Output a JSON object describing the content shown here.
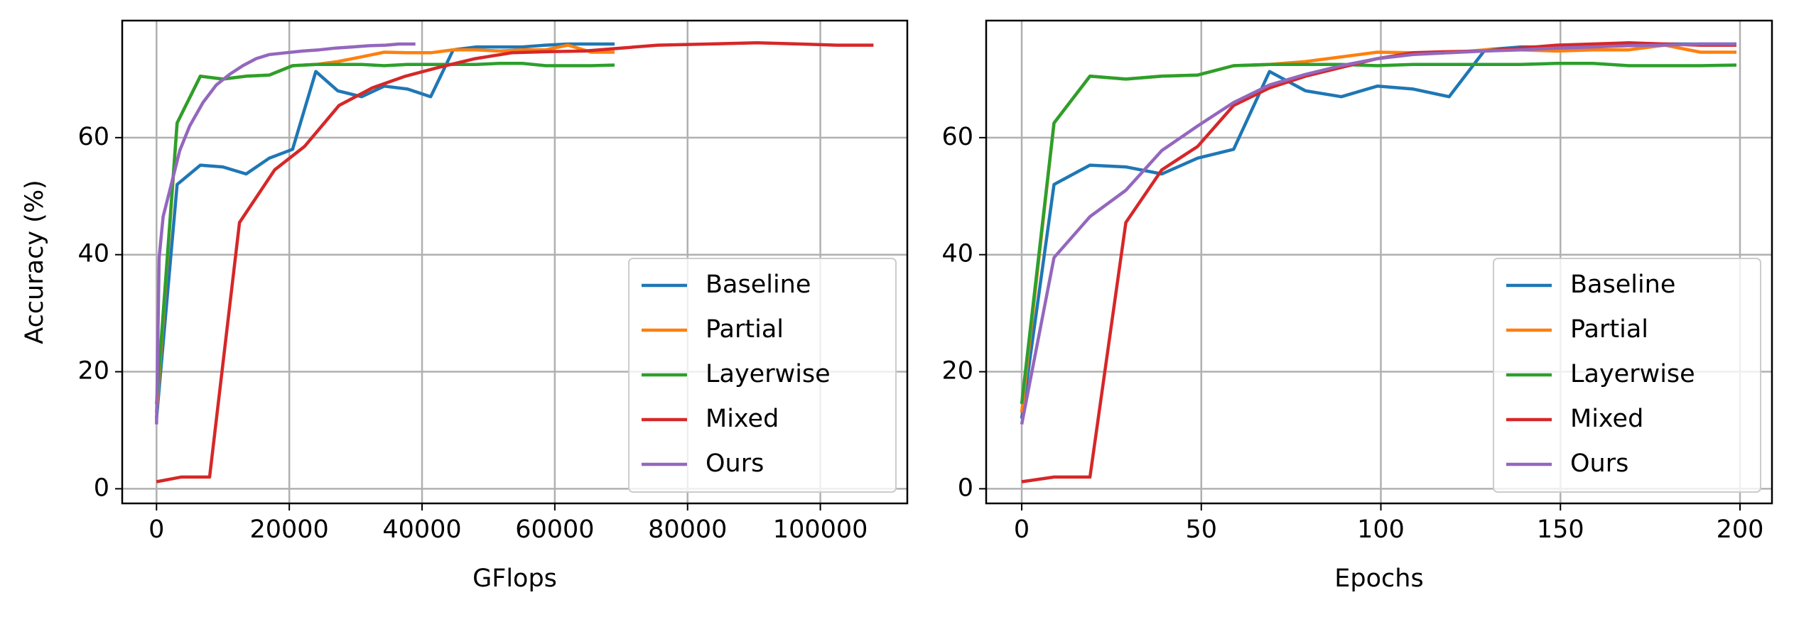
{
  "chart_data": [
    {
      "type": "line",
      "xlabel": "GFlops",
      "ylabel": "Accuracy (%)",
      "xlim": [
        -5170,
        113100
      ],
      "ylim": [
        -2.5,
        80
      ],
      "xticks": [
        0,
        20000,
        40000,
        60000,
        80000,
        100000
      ],
      "yticks": [
        0,
        20,
        40,
        60
      ],
      "grid": true,
      "legend": "lower right",
      "series": [
        {
          "name": "Baseline",
          "color": "#1f77b4",
          "x": [
            0,
            3100,
            6600,
            10000,
            13500,
            17000,
            20500,
            24000,
            27300,
            30900,
            34300,
            37800,
            41300,
            44700,
            48200,
            51700,
            55100,
            58600,
            62000,
            65500,
            69000
          ],
          "values": [
            12,
            52,
            55.3,
            55,
            53.8,
            56.5,
            58,
            71.3,
            68,
            67,
            68.8,
            68.3,
            67,
            75,
            75.5,
            75.5,
            75.5,
            75.8,
            76,
            76,
            76
          ]
        },
        {
          "name": "Partial",
          "color": "#ff7f0e",
          "x": [
            0,
            3100,
            6600,
            10000,
            13500,
            17000,
            20500,
            24000,
            27300,
            30900,
            34300,
            37800,
            41300,
            44700,
            48200,
            51700,
            55100,
            58600,
            62000,
            65500,
            69000
          ],
          "values": [
            13,
            62.5,
            70.5,
            70,
            70.5,
            70.7,
            72.3,
            72.5,
            73,
            73.8,
            74.6,
            74.5,
            74.5,
            75,
            75,
            74.8,
            75,
            75,
            75.8,
            74.6,
            74.6
          ]
        },
        {
          "name": "Layerwise",
          "color": "#2ca02c",
          "x": [
            0,
            3100,
            6600,
            10000,
            13500,
            17000,
            20500,
            24000,
            27300,
            30900,
            34300,
            37800,
            41300,
            44700,
            48200,
            51700,
            55100,
            58600,
            62000,
            65500,
            69000
          ],
          "values": [
            14.5,
            62.5,
            70.5,
            70,
            70.5,
            70.7,
            72.3,
            72.5,
            72.5,
            72.5,
            72.3,
            72.5,
            72.5,
            72.5,
            72.5,
            72.7,
            72.7,
            72.3,
            72.3,
            72.3,
            72.4
          ]
        },
        {
          "name": "Mixed",
          "color": "#d62728",
          "x": [
            0,
            3700,
            8000,
            12500,
            17800,
            22300,
            27500,
            32500,
            37500,
            42500,
            48000,
            53500,
            59000,
            64500,
            70000,
            75500,
            83000,
            90500,
            97000,
            102500,
            108000
          ],
          "values": [
            1.2,
            2,
            2,
            45.5,
            54.5,
            58.5,
            65.5,
            68.5,
            70.5,
            72,
            73.5,
            74.5,
            74.7,
            74.8,
            75.3,
            75.8,
            76,
            76.2,
            76,
            75.8,
            75.8
          ]
        },
        {
          "name": "Ours",
          "color": "#9467bd",
          "x": [
            0,
            400,
            1000,
            2000,
            3500,
            5000,
            7000,
            9000,
            11000,
            13000,
            15000,
            17000,
            19500,
            22000,
            24500,
            27000,
            29500,
            32000,
            34500,
            36500,
            39000
          ],
          "values": [
            11,
            39.5,
            46.5,
            51,
            57.8,
            62,
            66,
            69,
            70.8,
            72.3,
            73.5,
            74.2,
            74.5,
            74.8,
            75,
            75.3,
            75.5,
            75.7,
            75.8,
            76,
            76
          ]
        }
      ]
    },
    {
      "type": "line",
      "xlabel": "Epochs",
      "xlim": [
        -9.9,
        208.9
      ],
      "ylim": [
        -2.5,
        80
      ],
      "xticks": [
        0,
        50,
        100,
        150,
        200
      ],
      "yticks": [
        0,
        20,
        40,
        60
      ],
      "grid": true,
      "legend": "lower right",
      "x": [
        0,
        9,
        19,
        29,
        39,
        49,
        59,
        69,
        79,
        89,
        99,
        109,
        119,
        129,
        139,
        149,
        159,
        169,
        179,
        189,
        199
      ],
      "series": [
        {
          "name": "Baseline",
          "color": "#1f77b4",
          "values": [
            12,
            52,
            55.3,
            55,
            53.8,
            56.5,
            58,
            71.3,
            68,
            67,
            68.8,
            68.3,
            67,
            75,
            75.5,
            75.5,
            75.5,
            75.8,
            76,
            76,
            76
          ]
        },
        {
          "name": "Partial",
          "color": "#ff7f0e",
          "values": [
            13,
            62.5,
            70.5,
            70,
            70.5,
            70.7,
            72.3,
            72.5,
            73,
            73.8,
            74.6,
            74.5,
            74.5,
            75,
            75,
            74.8,
            75,
            75,
            75.8,
            74.6,
            74.6
          ]
        },
        {
          "name": "Layerwise",
          "color": "#2ca02c",
          "values": [
            14.5,
            62.5,
            70.5,
            70,
            70.5,
            70.7,
            72.3,
            72.5,
            72.5,
            72.5,
            72.3,
            72.5,
            72.5,
            72.5,
            72.5,
            72.7,
            72.7,
            72.3,
            72.3,
            72.3,
            72.4
          ]
        },
        {
          "name": "Mixed",
          "color": "#d62728",
          "values": [
            1.2,
            2,
            2,
            45.5,
            54.5,
            58.5,
            65.5,
            68.5,
            70.5,
            72,
            73.5,
            74.5,
            74.7,
            74.8,
            75.3,
            75.8,
            76,
            76.2,
            76,
            75.8,
            75.8
          ]
        },
        {
          "name": "Ours",
          "color": "#9467bd",
          "values": [
            11,
            39.5,
            46.5,
            51,
            57.8,
            62,
            66,
            69,
            70.8,
            72.3,
            73.5,
            74.2,
            74.5,
            74.8,
            75,
            75.3,
            75.5,
            75.7,
            75.8,
            76,
            76
          ]
        }
      ]
    }
  ]
}
